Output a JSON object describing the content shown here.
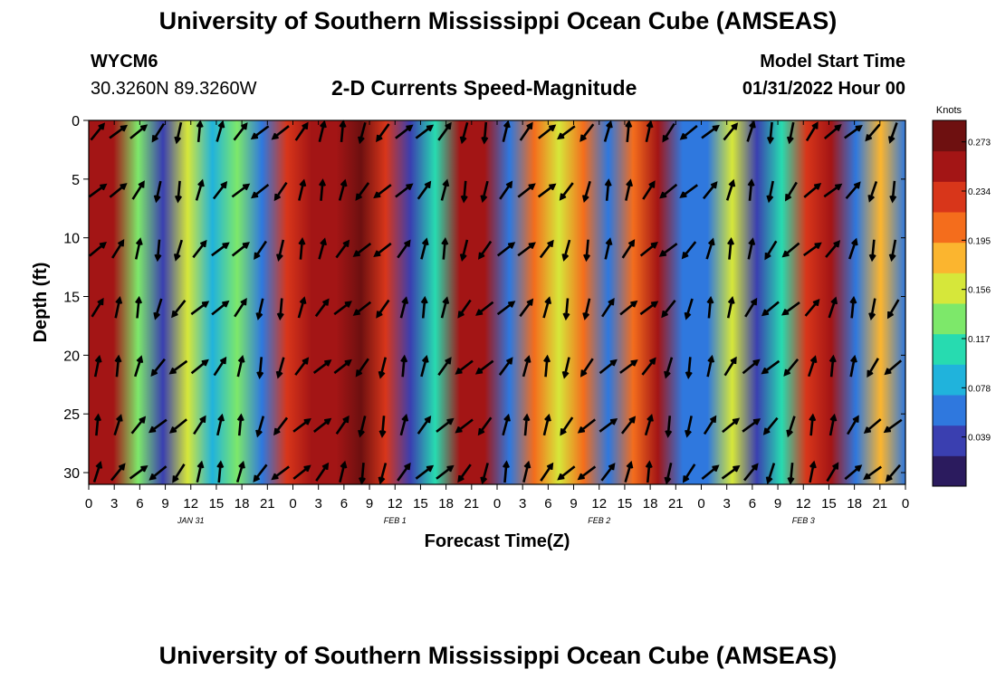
{
  "header": {
    "title": "University of Southern Mississippi Ocean Cube (AMSEAS)",
    "station": "WYCM6",
    "coords": "30.3260N  89.3260W",
    "plot_title": "2-D Currents Speed-Magnitude",
    "model_start_label": "Model Start Time",
    "model_start_value": "01/31/2022 Hour 00"
  },
  "footer": {
    "title": "University of Southern Mississippi Ocean Cube (AMSEAS)"
  },
  "colors": {
    "scale": [
      "#2b1b5e",
      "#3a3fb0",
      "#2f78de",
      "#20b3dc",
      "#27dbb0",
      "#7de86a",
      "#d6e73a",
      "#fbb52f",
      "#f46d1c",
      "#d8361a",
      "#a31515",
      "#6e1010"
    ]
  },
  "chart_data": {
    "type": "heatmap",
    "xlabel": "Forecast Time(Z)",
    "ylabel": "Depth (ft)",
    "x_range_hours": [
      0,
      96
    ],
    "y_range_ft": [
      0,
      31
    ],
    "x_ticks": [
      "0",
      "3",
      "6",
      "9",
      "12",
      "15",
      "18",
      "21",
      "0",
      "3",
      "6",
      "9",
      "12",
      "15",
      "18",
      "21",
      "0",
      "3",
      "6",
      "9",
      "12",
      "15",
      "18",
      "21",
      "0",
      "3",
      "6",
      "9",
      "12",
      "15",
      "18",
      "21",
      "0"
    ],
    "y_ticks": [
      "0",
      "5",
      "10",
      "15",
      "20",
      "25",
      "30"
    ],
    "date_labels": [
      {
        "hour": 12,
        "label": "JAN 31"
      },
      {
        "hour": 36,
        "label": "FEB 1"
      },
      {
        "hour": 60,
        "label": "FEB 2"
      },
      {
        "hour": 84,
        "label": "FEB 3"
      }
    ],
    "colorbar": {
      "title": "Knots",
      "ticks": [
        "0.273",
        "0.234",
        "0.195",
        "0.156",
        "0.117",
        "0.078",
        "0.039"
      ],
      "range": [
        0.0,
        0.29
      ]
    },
    "speed_knots_by_hour": [
      0.25,
      0.25,
      0.13,
      0.03,
      0.16,
      0.09,
      0.14,
      0.06,
      0.22,
      0.26,
      0.26,
      0.27,
      0.24,
      0.03,
      0.11,
      0.26,
      0.25,
      0.06,
      0.2,
      0.16,
      0.21,
      0.07,
      0.21,
      0.25,
      0.07,
      0.05,
      0.15,
      0.03,
      0.12,
      0.22,
      0.25,
      0.05,
      0.17,
      0.05
    ]
  }
}
